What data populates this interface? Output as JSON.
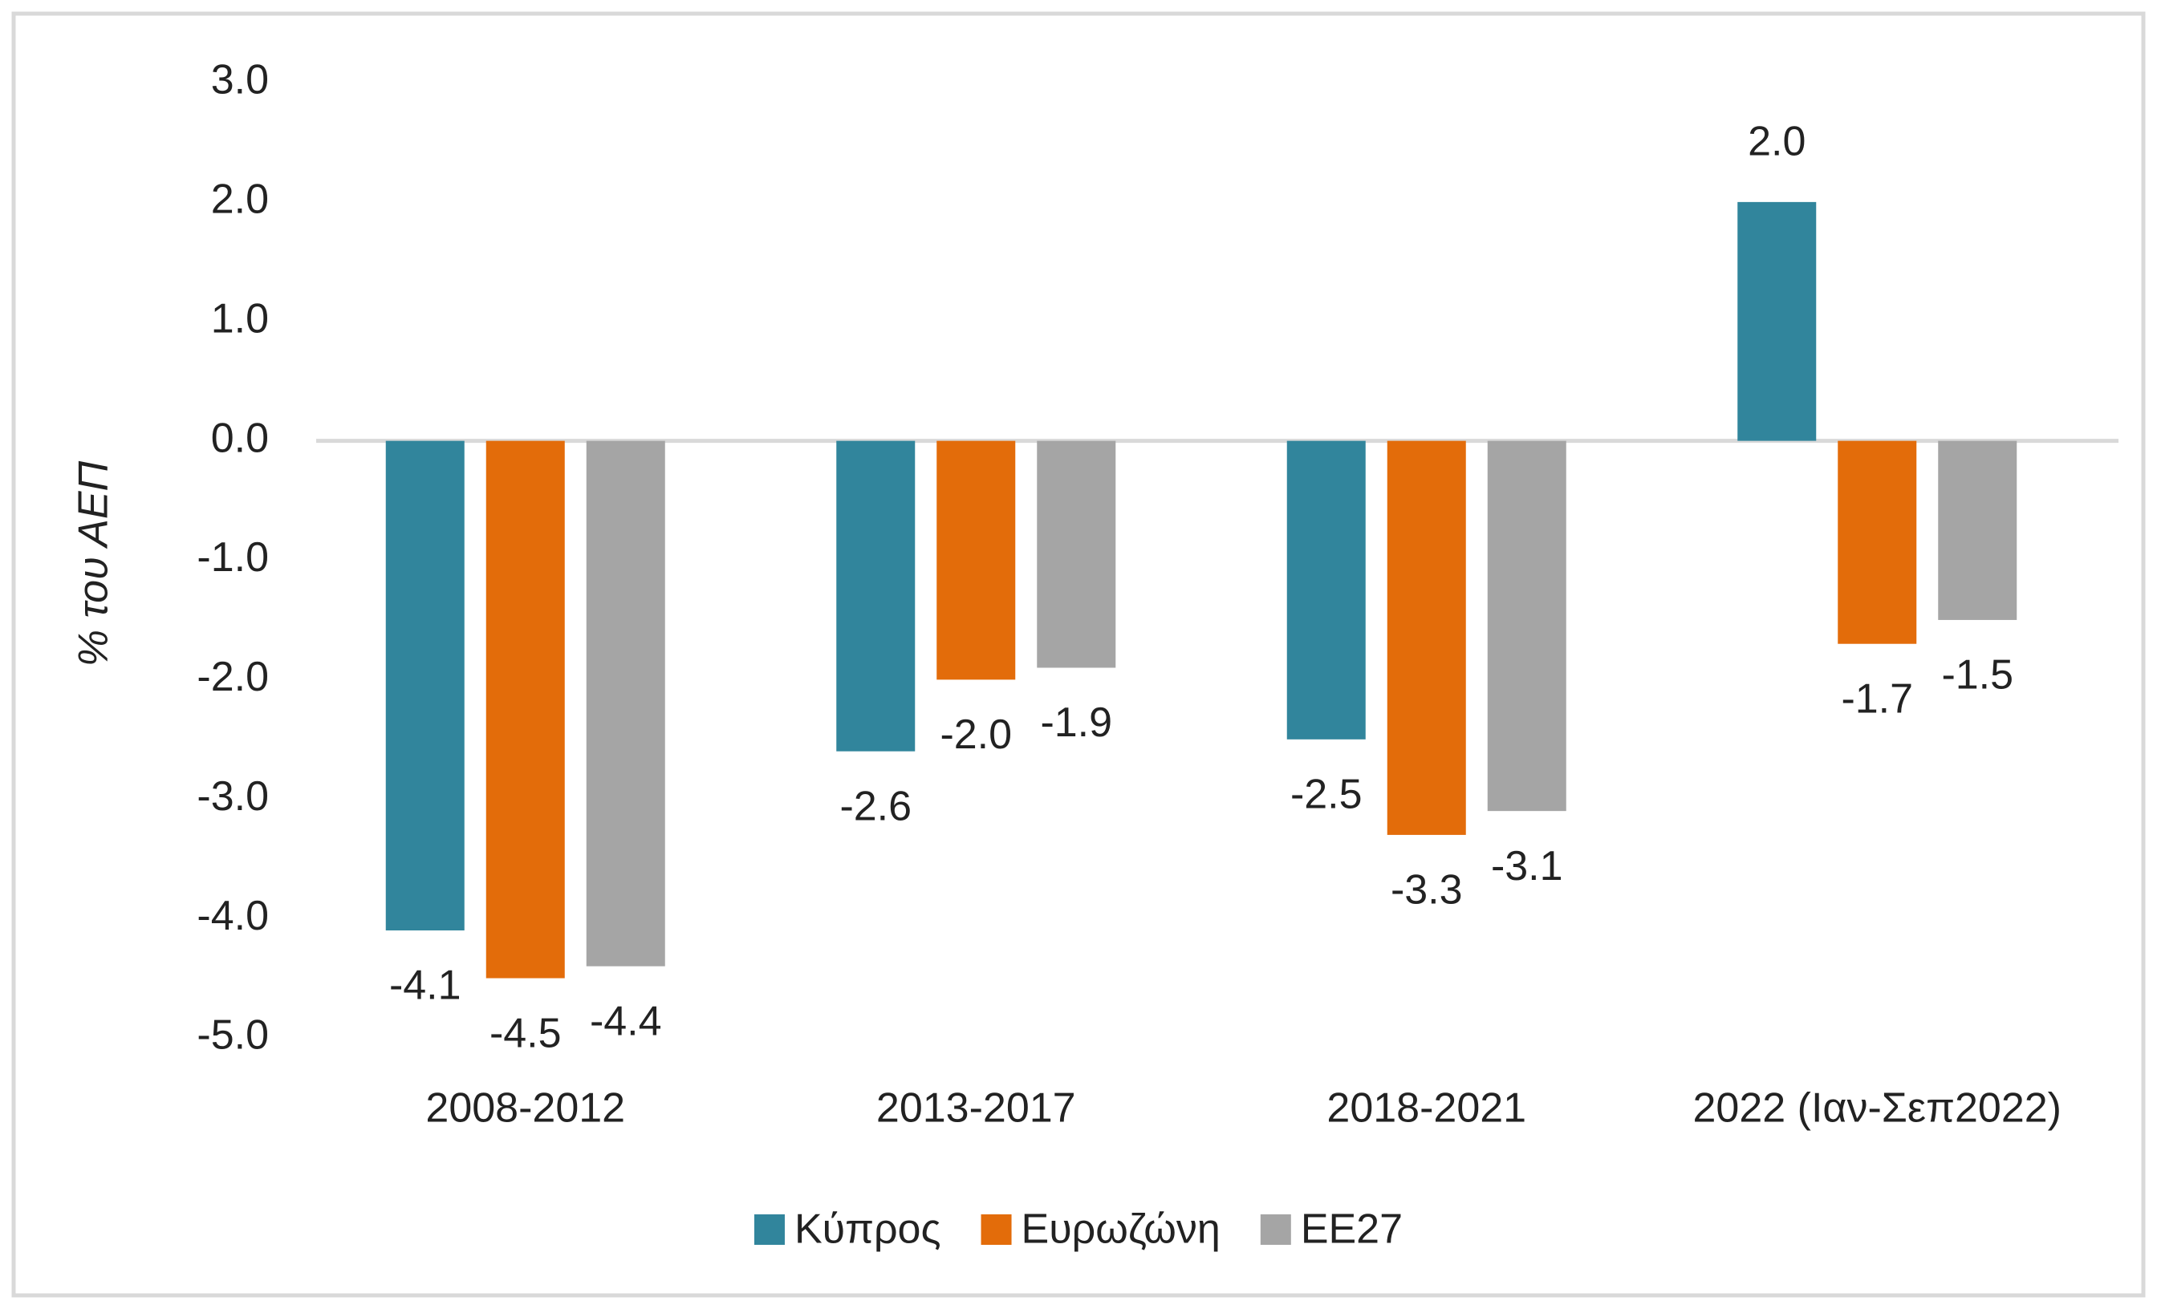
{
  "chart_data": {
    "type": "bar",
    "y_label": "% του ΑΕΠ",
    "categories": [
      "2008-2012",
      "2013-2017",
      "2018-2021",
      "2022 (Ιαν-Σεπ2022)"
    ],
    "series": [
      {
        "name": "Κύπρος",
        "color": "#31859c",
        "values": [
          -4.1,
          -2.6,
          -2.5,
          2.0
        ],
        "value_labels": [
          "-4.1",
          "-2.6",
          "-2.5",
          "2.0"
        ]
      },
      {
        "name": "Ευρωζώνη",
        "color": "#e36c0a",
        "values": [
          -4.5,
          -2.0,
          -3.3,
          -1.7
        ],
        "value_labels": [
          "-4.5",
          "-2.0",
          "-3.3",
          "-1.7"
        ]
      },
      {
        "name": "ΕΕ27",
        "color": "#a5a5a5",
        "values": [
          -4.4,
          -1.9,
          -3.1,
          -1.5
        ],
        "value_labels": [
          "-4.4",
          "-1.9",
          "-3.1",
          "-1.5"
        ]
      }
    ],
    "ylim": [
      -5,
      3
    ],
    "yticks": [
      {
        "value": 3,
        "label": "3.0"
      },
      {
        "value": 2,
        "label": "2.0"
      },
      {
        "value": 1,
        "label": "1.0"
      },
      {
        "value": 0,
        "label": "0.0"
      },
      {
        "value": -1,
        "label": "-1.0"
      },
      {
        "value": -2,
        "label": "-2.0"
      },
      {
        "value": -3,
        "label": "-3.0"
      },
      {
        "value": -4,
        "label": "-4.0"
      },
      {
        "value": -5,
        "label": "-5.0"
      }
    ],
    "grid": false,
    "legend": "bottom"
  }
}
